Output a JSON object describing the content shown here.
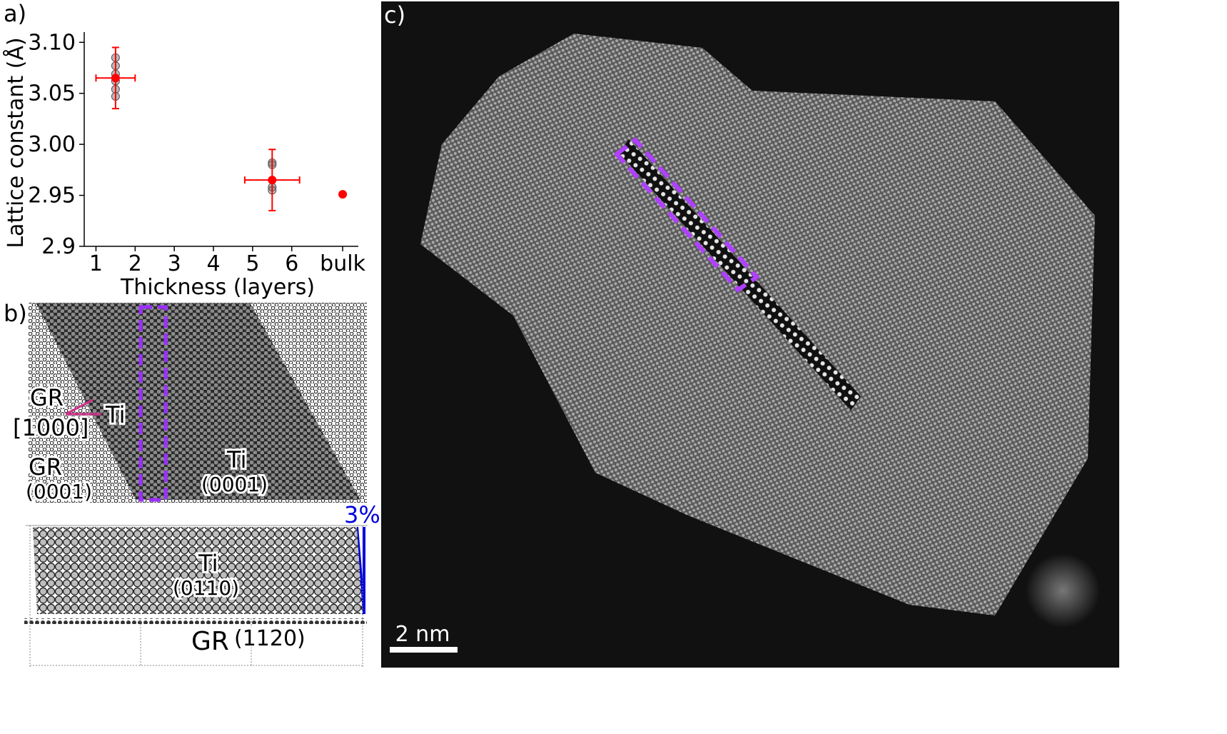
{
  "panels": {
    "a_label": "a)",
    "b_label": "b)",
    "c_label": "c)"
  },
  "chart_data": {
    "type": "scatter",
    "xlabel": "Thickness (layers)",
    "ylabel": "Lattice constant (Å)",
    "x_ticks": [
      "1",
      "2",
      "3",
      "4",
      "5",
      "6",
      "bulk"
    ],
    "y_ticks": [
      "2.9",
      "2.95",
      "3.00",
      "3.05",
      "3.10"
    ],
    "xlim": [
      0.7,
      7.7
    ],
    "ylim": [
      2.9,
      3.11
    ],
    "grid": false,
    "series": [
      {
        "kind": "raw",
        "color": "#808080",
        "points": [
          {
            "x": 1.5,
            "y": 3.085
          },
          {
            "x": 1.5,
            "y": 3.077
          },
          {
            "x": 1.5,
            "y": 3.069
          },
          {
            "x": 1.5,
            "y": 3.062
          },
          {
            "x": 1.5,
            "y": 3.054
          },
          {
            "x": 1.5,
            "y": 3.047
          },
          {
            "x": 5.5,
            "y": 2.982
          },
          {
            "x": 5.5,
            "y": 2.98
          },
          {
            "x": 5.5,
            "y": 2.958
          },
          {
            "x": 5.5,
            "y": 2.955
          }
        ]
      },
      {
        "kind": "mean",
        "color": "#ff0000",
        "points": [
          {
            "x": 1.5,
            "y": 3.065,
            "xerr": 0.5,
            "yerr": 0.03
          },
          {
            "x": 5.5,
            "y": 2.965,
            "xerr": 0.7,
            "yerr": 0.03
          },
          {
            "x": 7.3,
            "y": 2.951,
            "xerr": 0,
            "yerr": 0
          }
        ]
      }
    ]
  },
  "panel_b": {
    "gr_direction_label": "GR",
    "gr_direction_index": "[1000]",
    "ti_direction_label": "Ti",
    "gr_plane_label": "GR",
    "gr_plane_index": "(0001)",
    "ti_plane_label": "Ti",
    "ti_plane_index": "(0001)",
    "strain_label": "3%",
    "side_ti_label": "Ti",
    "side_ti_index": "(0110)",
    "side_gr_label": "GR",
    "side_gr_index": "(1120)",
    "highlight_color": "#9b30ff",
    "strain_color": "#0000dd",
    "arrow_color": "#d0308a"
  },
  "panel_c": {
    "scale_bar_label": "2 nm",
    "highlight_color": "#b040ff"
  }
}
